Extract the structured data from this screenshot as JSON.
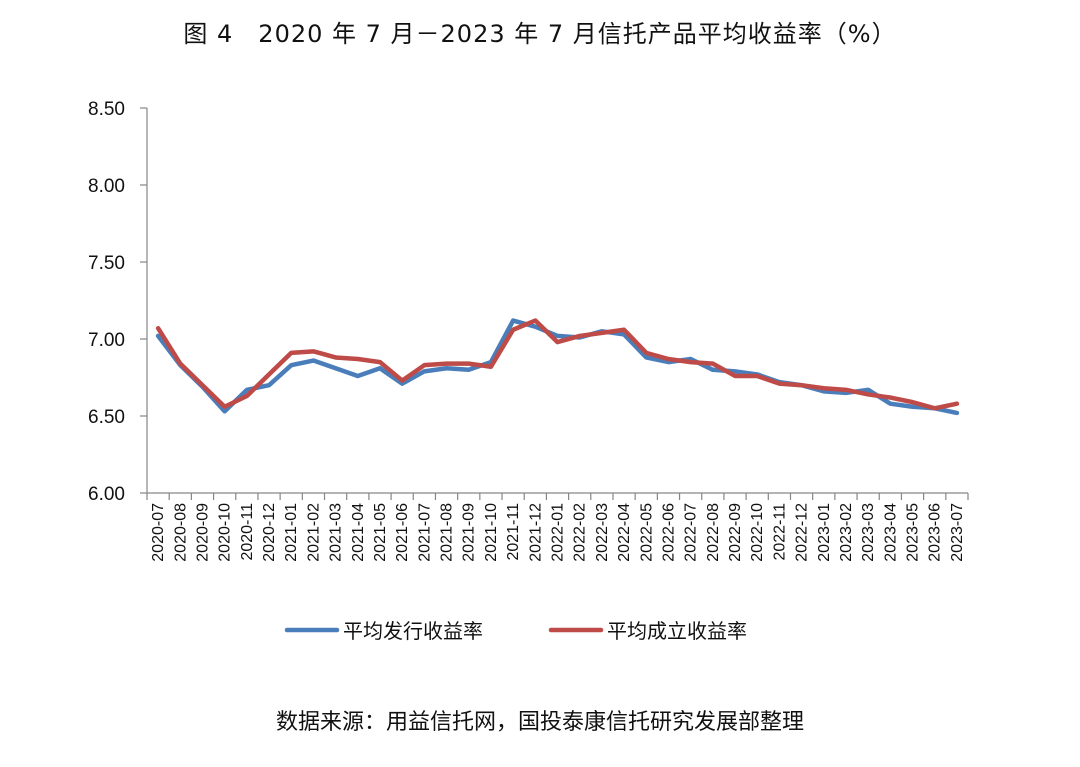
{
  "title": "图 4　2020 年 7 月－2023 年 7 月信托产品平均收益率（%）",
  "source": "数据来源：用益信托网，国投泰康信托研究发展部整理",
  "colors": {
    "series1": "#4a7ebb",
    "series2": "#be4b48",
    "axis": "#868686"
  },
  "chart_data": {
    "type": "line",
    "ylim": [
      6.0,
      8.5
    ],
    "yticks": [
      "6.00",
      "6.50",
      "7.00",
      "7.50",
      "8.00",
      "8.50"
    ],
    "grid": false,
    "legend_position": "bottom",
    "categories": [
      "2020-07",
      "2020-08",
      "2020-09",
      "2020-10",
      "2020-11",
      "2020-12",
      "2021-01",
      "2021-02",
      "2021-03",
      "2021-04",
      "2021-05",
      "2021-06",
      "2021-07",
      "2021-08",
      "2021-09",
      "2021-10",
      "2021-11",
      "2021-12",
      "2022-01",
      "2022-02",
      "2022-03",
      "2022-04",
      "2022-05",
      "2022-06",
      "2022-07",
      "2022-08",
      "2022-09",
      "2022-10",
      "2022-11",
      "2022-12",
      "2023-01",
      "2023-02",
      "2023-03",
      "2023-04",
      "2023-05",
      "2023-06",
      "2023-07"
    ],
    "series": [
      {
        "name": "平均发行收益率",
        "values": [
          7.02,
          6.83,
          6.69,
          6.53,
          6.67,
          6.7,
          6.83,
          6.86,
          6.81,
          6.76,
          6.81,
          6.71,
          6.79,
          6.81,
          6.8,
          6.85,
          7.12,
          7.08,
          7.02,
          7.01,
          7.05,
          7.03,
          6.88,
          6.85,
          6.87,
          6.8,
          6.79,
          6.77,
          6.72,
          6.7,
          6.66,
          6.65,
          6.67,
          6.58,
          6.56,
          6.55,
          6.52
        ]
      },
      {
        "name": "平均成立收益率",
        "values": [
          7.07,
          6.84,
          6.7,
          6.56,
          6.63,
          6.77,
          6.91,
          6.92,
          6.88,
          6.87,
          6.85,
          6.73,
          6.83,
          6.84,
          6.84,
          6.82,
          7.06,
          7.12,
          6.98,
          7.02,
          7.04,
          7.06,
          6.91,
          6.87,
          6.85,
          6.84,
          6.76,
          6.76,
          6.71,
          6.7,
          6.68,
          6.67,
          6.64,
          6.62,
          6.59,
          6.55,
          6.58
        ]
      }
    ]
  }
}
